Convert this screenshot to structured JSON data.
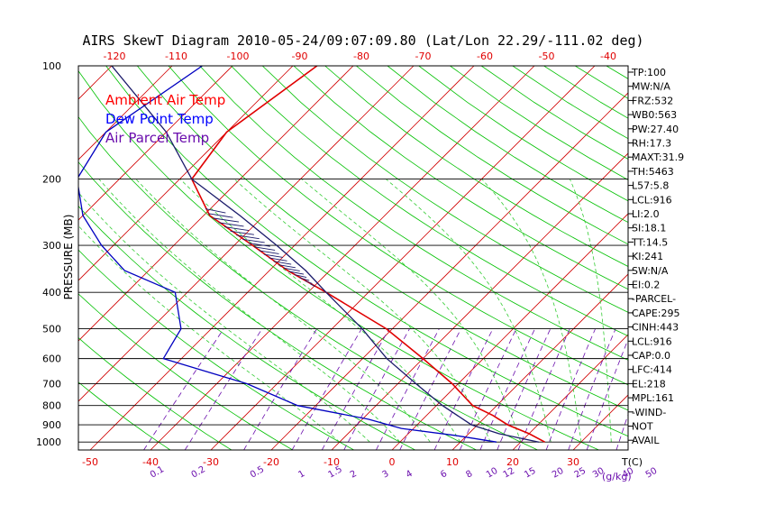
{
  "chart_data": {
    "type": "line",
    "title": "AIRS SkewT Diagram 2010-05-24/09:07:09.80 (Lat/Lon 22.29/-111.02 deg)",
    "ylabel": "PRESSURE (MB)",
    "xlabel": "T(C)",
    "mixing_ratio_unit": "(g/kg)",
    "pressure_ticks": [
      "100",
      "200",
      "300",
      "400",
      "500",
      "600",
      "700",
      "800",
      "900",
      "1000"
    ],
    "pressure_ticks_values": [
      100,
      200,
      300,
      400,
      500,
      600,
      700,
      800,
      900,
      1000
    ],
    "top_temp_ticks": [
      "-120",
      "-110",
      "-100",
      "-90",
      "-80",
      "-70",
      "-60",
      "-50",
      "-40"
    ],
    "bottom_temp_ticks": [
      "-50",
      "-40",
      "-30",
      "-20",
      "-10",
      "0",
      "10",
      "20",
      "30"
    ],
    "mixing_ratio_ticks": [
      "0.1",
      "0.2",
      "0.5",
      "1",
      "1.5",
      "2",
      "3",
      "4",
      "6",
      "8",
      "10",
      "12",
      "15",
      "20",
      "25",
      "30",
      "40",
      "50"
    ],
    "pressure_range": [
      100,
      1050
    ],
    "scale": "log-pressure, skewed temperature",
    "legend": [
      {
        "name": "Ambient Air Temp",
        "color": "#ff0000"
      },
      {
        "name": "Dew Point Temp",
        "color": "#0000ff"
      },
      {
        "name": "Air Parcel Temp",
        "color": "#6a0dad"
      }
    ],
    "series": [
      {
        "name": "Ambient Air Temp",
        "color": "#e00000",
        "points": [
          [
            100,
            -76
          ],
          [
            150,
            -80
          ],
          [
            200,
            -78
          ],
          [
            250,
            -69
          ],
          [
            300,
            -57
          ],
          [
            350,
            -47
          ],
          [
            400,
            -37
          ],
          [
            500,
            -21
          ],
          [
            600,
            -10
          ],
          [
            700,
            -1
          ],
          [
            800,
            6
          ],
          [
            850,
            11
          ],
          [
            900,
            15
          ],
          [
            950,
            20
          ],
          [
            1000,
            24
          ]
        ]
      },
      {
        "name": "Dew Point Temp",
        "color": "#0000c0",
        "points": [
          [
            100,
            -95
          ],
          [
            150,
            -100
          ],
          [
            200,
            -97
          ],
          [
            250,
            -90
          ],
          [
            300,
            -82
          ],
          [
            350,
            -74
          ],
          [
            400,
            -62
          ],
          [
            500,
            -55
          ],
          [
            600,
            -53
          ],
          [
            700,
            -35
          ],
          [
            800,
            -23
          ],
          [
            870,
            -9
          ],
          [
            920,
            -2
          ],
          [
            960,
            8
          ],
          [
            1000,
            16
          ]
        ]
      },
      {
        "name": "Air Parcel Temp",
        "color": "#1a1a6a",
        "points": [
          [
            100,
            -110
          ],
          [
            150,
            -90
          ],
          [
            200,
            -78
          ],
          [
            250,
            -64
          ],
          [
            300,
            -53
          ],
          [
            350,
            -44
          ],
          [
            400,
            -37
          ],
          [
            500,
            -25
          ],
          [
            600,
            -16
          ],
          [
            700,
            -7
          ],
          [
            800,
            1
          ],
          [
            900,
            9
          ],
          [
            950,
            15
          ],
          [
            1000,
            23
          ]
        ]
      }
    ],
    "indices": [
      "TP:100",
      "MW:N/A",
      "FRZ:532",
      "WB0:563",
      "PW:27.40",
      "RH:17.3",
      "MAXT:31.9",
      "TH:5463",
      "L57:5.8",
      "LCL:916",
      "LI:2.0",
      "SI:18.1",
      "TT:14.5",
      "KI:241",
      "SW:N/A",
      "EI:0.2",
      "-PARCEL-",
      "CAPE:295",
      "CINH:443",
      "LCL:916",
      "CAP:0.0",
      "LFC:414",
      "EL:218",
      "MPL:161",
      "-WIND-",
      "NOT",
      "AVAIL"
    ],
    "colors": {
      "isotherm": "#d00000",
      "dry_adiabat": "#00c000",
      "moist_adiabat": "#33cc33",
      "mixing_ratio": "#6a0dad",
      "axis": "#000000"
    }
  }
}
